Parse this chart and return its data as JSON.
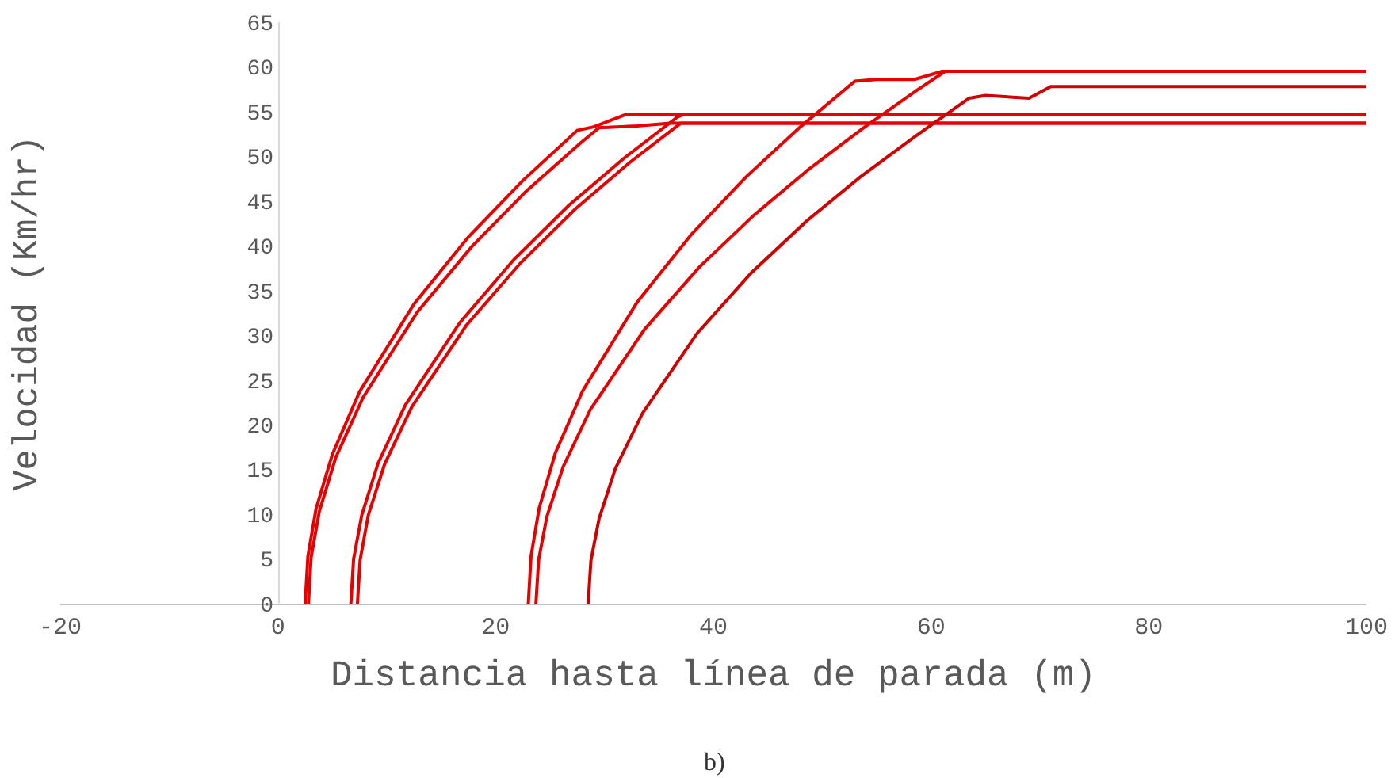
{
  "chart_data": {
    "type": "line",
    "xlabel": "Distancia hasta línea de parada (m)",
    "ylabel": "Velocidad (Km/hr)",
    "annotations": [
      "b)"
    ],
    "xlim": [
      -20,
      100
    ],
    "xticks": [
      -20,
      0,
      20,
      40,
      60,
      80,
      100
    ],
    "ylim": [
      0,
      65
    ],
    "yticks": [
      0,
      5,
      10,
      15,
      20,
      25,
      30,
      35,
      40,
      45,
      50,
      55,
      60,
      65
    ],
    "marker": "none",
    "line_style": "solid",
    "series": [
      {
        "color": "#e80000",
        "x": [
          2.5,
          2.75,
          3.5,
          5,
          7.5,
          12.5,
          17.5,
          22.5,
          27.5,
          29,
          32,
          100
        ],
        "values": [
          0,
          5.3,
          10.6,
          16.7,
          23.7,
          33.5,
          41,
          47.3,
          52.9,
          53.3,
          54.7,
          54.7
        ]
      },
      {
        "color": "#e80000",
        "x": [
          2.8,
          3.05,
          3.8,
          5.3,
          7.8,
          12.8,
          17.8,
          22.8,
          27.8,
          29.5,
          33,
          36,
          100
        ],
        "values": [
          0,
          5.2,
          10.3,
          16.3,
          23,
          32.6,
          39.9,
          46.1,
          51.5,
          53.2,
          53.4,
          53.7,
          53.7
        ]
      },
      {
        "color": "#e80000",
        "x": [
          6.7,
          6.95,
          7.7,
          9.2,
          11.7,
          16.7,
          21.7,
          26.7,
          31.7,
          36.7,
          37.3,
          100
        ],
        "values": [
          0,
          5,
          9.9,
          15.7,
          22.2,
          31.4,
          38.5,
          44.5,
          49.7,
          54.4,
          54.7,
          54.7
        ]
      },
      {
        "color": "#e80000",
        "x": [
          7.3,
          7.55,
          8.3,
          9.8,
          12.3,
          17.3,
          22.3,
          27.3,
          32.3,
          37,
          100
        ],
        "values": [
          0,
          4.9,
          9.9,
          15.6,
          22,
          31.1,
          38.1,
          44.1,
          49.3,
          53.7,
          53.7
        ]
      },
      {
        "color": "#e80000",
        "x": [
          23,
          23.25,
          24,
          25.5,
          28,
          33,
          38,
          43,
          48,
          53,
          55,
          58.5,
          61,
          100
        ],
        "values": [
          0,
          5.3,
          10.7,
          16.9,
          23.8,
          33.7,
          41.3,
          47.7,
          53.3,
          58.4,
          58.6,
          58.6,
          59.5,
          59.5
        ]
      },
      {
        "color": "#e80000",
        "x": [
          23.7,
          23.95,
          24.7,
          26.2,
          28.7,
          33.7,
          38.7,
          43.7,
          48.7,
          53.7,
          58.7,
          61.3,
          100
        ],
        "values": [
          0,
          4.9,
          9.7,
          15.3,
          21.7,
          30.7,
          37.6,
          43.4,
          48.5,
          53.1,
          57.4,
          59.5,
          59.5
        ]
      },
      {
        "color": "#d00000",
        "x": [
          28.5,
          28.75,
          29.5,
          31,
          33.5,
          38.5,
          43.5,
          48.5,
          53.5,
          58.5,
          63.5,
          65,
          69,
          71,
          100
        ],
        "values": [
          0,
          4.8,
          9.5,
          15.1,
          21.3,
          30.2,
          37,
          42.7,
          47.7,
          52.2,
          56.5,
          56.8,
          56.5,
          57.8,
          57.8
        ]
      }
    ]
  }
}
